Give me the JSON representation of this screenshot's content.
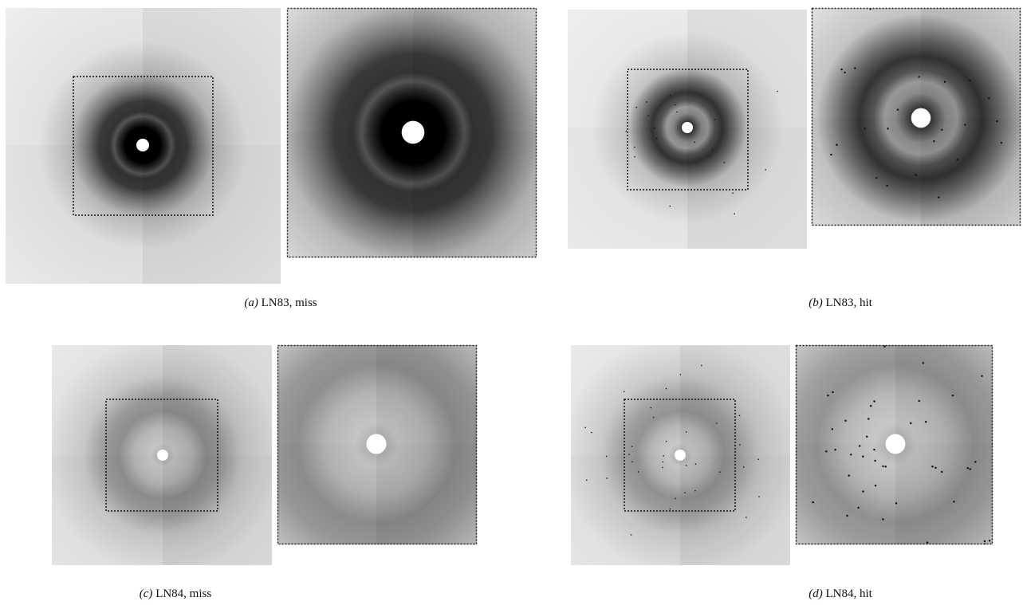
{
  "panels": [
    {
      "label": "(a)",
      "caption": "LN83, miss"
    },
    {
      "label": "(b)",
      "caption": "LN83, hit"
    },
    {
      "label": "(c)",
      "caption": "LN84, miss"
    },
    {
      "label": "(d)",
      "caption": "LN84, hit"
    }
  ]
}
